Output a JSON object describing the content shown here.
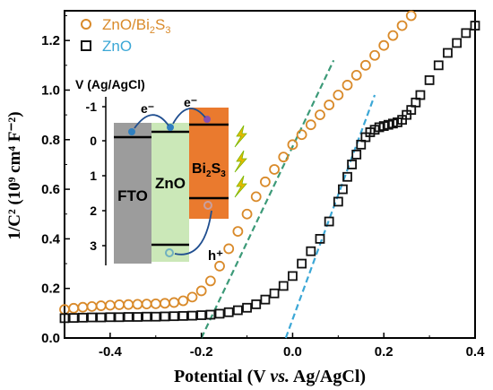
{
  "chart_data": {
    "type": "scatter",
    "xlabel_main": "Potential (V ",
    "xlabel_italic": "vs.",
    "xlabel_tail": " Ag/AgCl)",
    "ylabel": "1/C² (10⁹ cm⁴ F⁻²)",
    "xlim": [
      -0.5,
      0.4
    ],
    "ylim": [
      0.0,
      1.32
    ],
    "xticks": [
      -0.4,
      -0.2,
      0.0,
      0.2,
      0.4
    ],
    "xtick_labels": [
      "-0.4",
      "-0.2",
      "0.0",
      "0.2",
      "0.4"
    ],
    "yticks": [
      0.0,
      0.2,
      0.4,
      0.6,
      0.8,
      1.0,
      1.2
    ],
    "ytick_labels": [
      "0.0",
      "0.2",
      "0.4",
      "0.6",
      "0.8",
      "1.0",
      "1.2"
    ],
    "legend_position": "top-left",
    "series": [
      {
        "name_main": "ZnO/Bi",
        "name_sub1": "2",
        "name_mid": "S",
        "name_sub2": "3",
        "marker": "circle",
        "color": "#d98a2a",
        "x": [
          -0.5,
          -0.48,
          -0.46,
          -0.44,
          -0.42,
          -0.4,
          -0.38,
          -0.36,
          -0.34,
          -0.32,
          -0.3,
          -0.28,
          -0.26,
          -0.24,
          -0.22,
          -0.2,
          -0.18,
          -0.16,
          -0.14,
          -0.12,
          -0.1,
          -0.08,
          -0.06,
          -0.04,
          -0.02,
          0.0,
          0.02,
          0.04,
          0.06,
          0.08,
          0.1,
          0.12,
          0.14,
          0.16,
          0.18,
          0.2,
          0.22,
          0.24,
          0.26
        ],
        "y": [
          0.115,
          0.12,
          0.124,
          0.127,
          0.13,
          0.132,
          0.134,
          0.135,
          0.136,
          0.137,
          0.138,
          0.14,
          0.143,
          0.15,
          0.165,
          0.19,
          0.23,
          0.29,
          0.36,
          0.43,
          0.5,
          0.57,
          0.63,
          0.68,
          0.73,
          0.78,
          0.82,
          0.86,
          0.9,
          0.94,
          0.98,
          1.02,
          1.06,
          1.1,
          1.14,
          1.18,
          1.22,
          1.26,
          1.3
        ]
      },
      {
        "name": "ZnO",
        "marker": "square",
        "color": "#111111",
        "x": [
          -0.5,
          -0.48,
          -0.46,
          -0.44,
          -0.42,
          -0.4,
          -0.38,
          -0.36,
          -0.34,
          -0.32,
          -0.3,
          -0.28,
          -0.26,
          -0.24,
          -0.22,
          -0.2,
          -0.18,
          -0.16,
          -0.14,
          -0.12,
          -0.1,
          -0.08,
          -0.06,
          -0.04,
          -0.02,
          0.0,
          0.02,
          0.04,
          0.06,
          0.08,
          0.1,
          0.11,
          0.12,
          0.13,
          0.14,
          0.15,
          0.16,
          0.17,
          0.18,
          0.19,
          0.2,
          0.21,
          0.22,
          0.23,
          0.24,
          0.25,
          0.26,
          0.27,
          0.28,
          0.3,
          0.32,
          0.34,
          0.36,
          0.38,
          0.4
        ],
        "y": [
          0.08,
          0.081,
          0.082,
          0.083,
          0.083,
          0.084,
          0.084,
          0.085,
          0.085,
          0.086,
          0.086,
          0.087,
          0.088,
          0.089,
          0.09,
          0.092,
          0.094,
          0.098,
          0.104,
          0.112,
          0.122,
          0.136,
          0.155,
          0.18,
          0.21,
          0.25,
          0.3,
          0.35,
          0.4,
          0.47,
          0.55,
          0.6,
          0.65,
          0.7,
          0.74,
          0.78,
          0.81,
          0.83,
          0.84,
          0.85,
          0.855,
          0.86,
          0.865,
          0.87,
          0.88,
          0.9,
          0.92,
          0.95,
          0.98,
          1.04,
          1.1,
          1.15,
          1.19,
          1.23,
          1.26
        ]
      }
    ],
    "fit_lines": [
      {
        "color": "#3c9a78",
        "x": [
          -0.2,
          0.09
        ],
        "y": [
          0.0,
          1.12
        ]
      },
      {
        "color": "#3ba7d6",
        "x": [
          -0.015,
          0.18
        ],
        "y": [
          0.0,
          0.98
        ]
      }
    ]
  },
  "inset": {
    "axis_label": "V (Ag/AgCl)",
    "ticks": [
      "-1",
      "0",
      "1",
      "2",
      "3"
    ],
    "fto_label": "FTO",
    "zno_label": "ZnO",
    "bi_label_main": "Bi",
    "bi_label_sub1": "2",
    "bi_label_mid": "S",
    "bi_label_sub2": "3",
    "electron_label": "e⁻",
    "hole_label": "h⁺",
    "colors": {
      "fto": "#9c9c9c",
      "zno": "#cbe8b8",
      "bi2s3": "#ea7a2e",
      "arrow": "#1f4e8f",
      "lightning": "#e6b800"
    }
  }
}
